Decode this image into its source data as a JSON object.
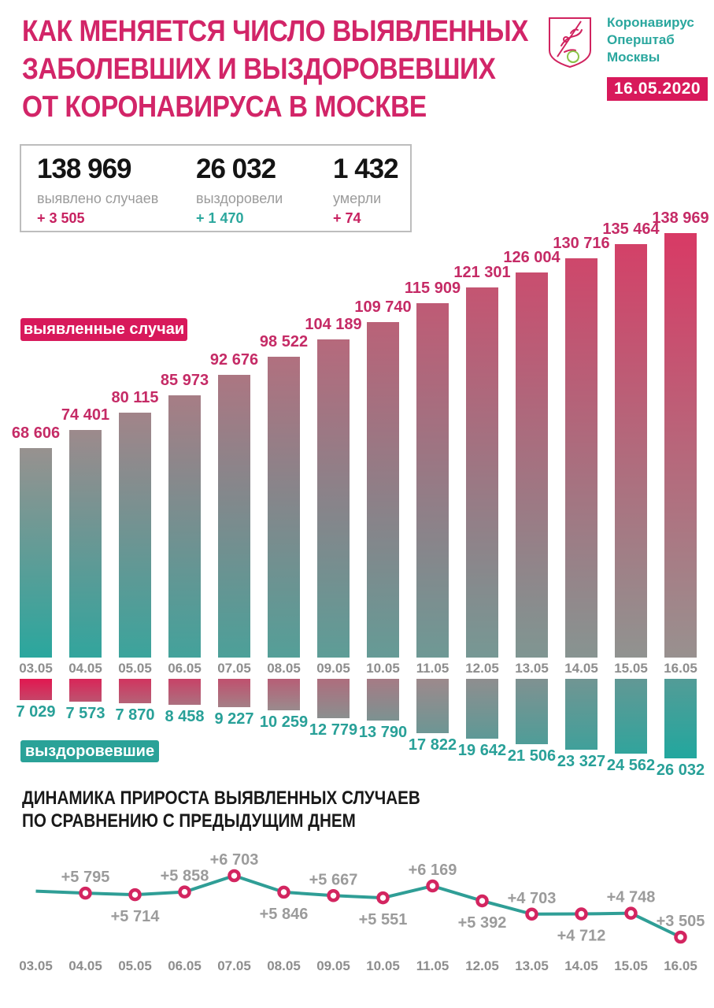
{
  "header": {
    "title_lines": [
      "КАК МЕНЯЕТСЯ ЧИСЛО ВЫЯВЛЕННЫХ",
      "ЗАБОЛЕВШИХ И ВЫЗДОРОВЕВШИХ",
      "ОТ КОРОНАВИРУСА В МОСКВЕ"
    ],
    "brand_lines": [
      "Коронавирус",
      "Оперштаб",
      "Москвы"
    ],
    "date_badge": "16.05.2020"
  },
  "stats": [
    {
      "value": "138 969",
      "label": "выявлено случаев",
      "delta": "+ 3 505",
      "delta_color": "#c72160"
    },
    {
      "value": "26 032",
      "label": "выздоровели",
      "delta": "+ 1 470",
      "delta_color": "#2ba79d"
    },
    {
      "value": "1 432",
      "label": "умерли",
      "delta": "+ 74",
      "delta_color": "#c72160"
    }
  ],
  "badges": {
    "cases": "выявленные случаи",
    "recovered": "выздоровевшие"
  },
  "section_title_lines": [
    "ДИНАМИКА ПРИРОСТА ВЫЯВЛЕННЫХ СЛУЧАЕВ",
    "ПО СРАВНЕНИЮ С ПРЕДЫДУЩИМ ДНЕМ"
  ],
  "colors": {
    "title_pink": "#d22568",
    "badge_pink": "#d8195b",
    "teal_badge": "#2aa298",
    "brand_teal": "#2aa79e",
    "bar_label_pink": "#c52b66",
    "bar_label_teal": "#28a098",
    "axis_gray": "#8d8d8d",
    "increment_label_gray": "#9b9b9b",
    "line_teal": "#2f9e96",
    "marker_pink": "#d32560",
    "cases_palette": [
      "#2aa79e",
      "#98918f",
      "#d83a65"
    ],
    "recovered_palette": [
      "#e21750",
      "#9c8b8d",
      "#22a79e"
    ]
  },
  "chart_data": [
    {
      "type": "bar",
      "title": "выявленные случаи",
      "categories": [
        "03.05",
        "04.05",
        "05.05",
        "06.05",
        "07.05",
        "08.05",
        "09.05",
        "10.05",
        "11.05",
        "12.05",
        "13.05",
        "14.05",
        "15.05",
        "16.05"
      ],
      "values": [
        68606,
        74401,
        80115,
        85973,
        92676,
        98522,
        104189,
        109740,
        115909,
        121301,
        126004,
        130716,
        135464,
        138969
      ],
      "direction": "up",
      "value_labels_position": "above bars",
      "gradient": "teal bottom-left to pink top-right"
    },
    {
      "type": "bar",
      "title": "выздоровевшие",
      "categories": [
        "03.05",
        "04.05",
        "05.05",
        "06.05",
        "07.05",
        "08.05",
        "09.05",
        "10.05",
        "11.05",
        "12.05",
        "13.05",
        "14.05",
        "15.05",
        "16.05"
      ],
      "values": [
        7029,
        7573,
        7870,
        8458,
        9227,
        10259,
        12779,
        13790,
        17822,
        19642,
        21506,
        23327,
        24562,
        26032
      ],
      "direction": "down",
      "value_labels_position": "below bars",
      "gradient": "pink top-left to teal bottom-right"
    },
    {
      "type": "line",
      "title": "ДИНАМИКА ПРИРОСТА ВЫЯВЛЕННЫХ СЛУЧАЕВ ПО СРАВНЕНИЮ С ПРЕДЫДУЩИМ ДНЕМ",
      "categories": [
        "03.05",
        "04.05",
        "05.05",
        "06.05",
        "07.05",
        "08.05",
        "09.05",
        "10.05",
        "11.05",
        "12.05",
        "13.05",
        "14.05",
        "15.05",
        "16.05"
      ],
      "values": [
        null,
        5795,
        5714,
        5858,
        6703,
        5846,
        5667,
        5551,
        6169,
        5392,
        4703,
        4712,
        4748,
        3505
      ],
      "label_positions": [
        null,
        "above",
        "below",
        "above",
        "above",
        "below",
        "above",
        "below",
        "above",
        "below",
        "above",
        "below",
        "above",
        "above"
      ],
      "lead_in_estimated_value": 5900,
      "ylim": [
        3505,
        6703
      ],
      "grid": false,
      "legend": false
    }
  ]
}
